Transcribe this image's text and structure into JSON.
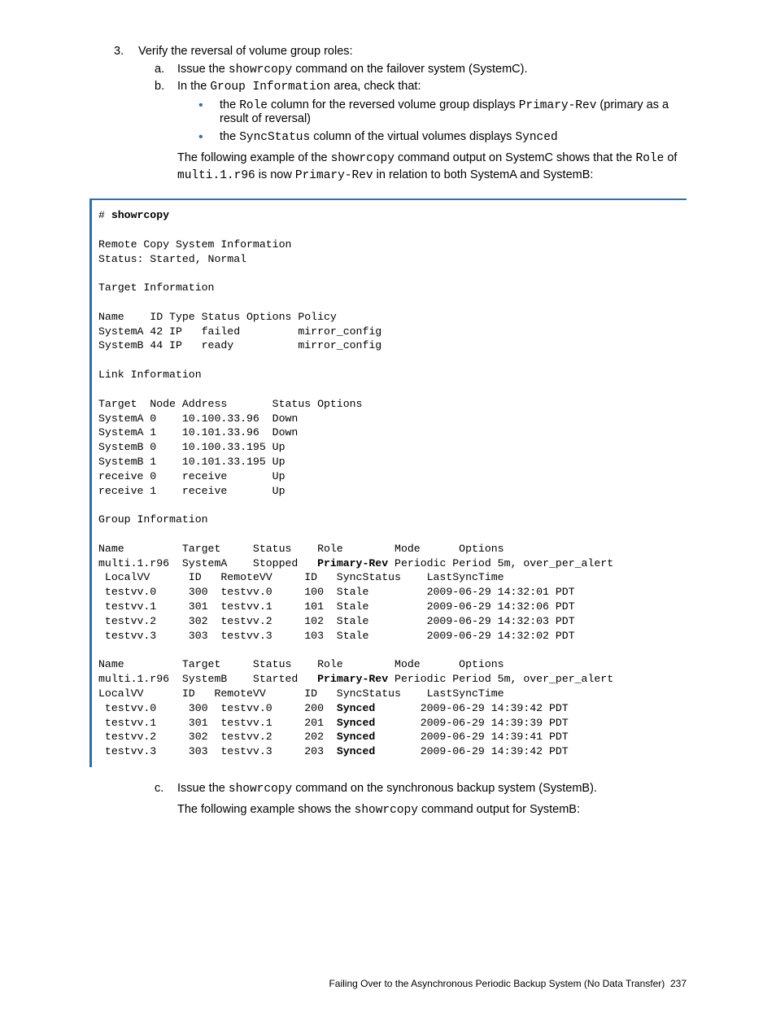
{
  "colors": {
    "bullet": "#2a6ebb",
    "code_border": "#2a6ebb",
    "text": "#000000"
  },
  "step3": {
    "number": "3.",
    "title": "Verify the reversal of volume group roles:",
    "a": {
      "label": "a.",
      "pre": "Issue the ",
      "cmd": "showrcopy",
      "post": " command on the failover system (SystemC)."
    },
    "b": {
      "label": "b.",
      "pre": "In the ",
      "cmd": "Group Information",
      "post": " area, check that:",
      "bullet1": {
        "t1": "the ",
        "c1": "Role",
        "t2": " column for the reversed volume group displays ",
        "c2": "Primary-Rev",
        "t3": " (primary as a result of reversal)"
      },
      "bullet2": {
        "t1": "the ",
        "c1": "SyncStatus",
        "t2": " column of the virtual volumes displays ",
        "c2": "Synced"
      },
      "para": {
        "t1": "The following example of the ",
        "c1": "showrcopy",
        "t2": " command output on SystemC shows that the ",
        "c2": "Role",
        "t3": " of ",
        "c3": "multi.1.r96",
        "t4": " is now ",
        "c4": "Primary-Rev",
        "t5": " in relation to both SystemA and SystemB:"
      }
    }
  },
  "code": {
    "prompt": "# ",
    "cmd": "showrcopy",
    "l1": "Remote Copy System Information",
    "l2": "Status: Started, Normal",
    "l3": "Target Information",
    "l4": "Name    ID Type Status Options Policy",
    "l5": "SystemA 42 IP   failed         mirror_config",
    "l6": "SystemB 44 IP   ready          mirror_config",
    "l7": "Link Information",
    "l8": "Target  Node Address       Status Options",
    "l9": "SystemA 0    10.100.33.96  Down",
    "l10": "SystemA 1    10.101.33.96  Down",
    "l11": "SystemB 0    10.100.33.195 Up",
    "l12": "SystemB 1    10.101.33.195 Up",
    "l13": "receive 0    receive       Up",
    "l14": "receive 1    receive       Up",
    "l15": "Group Information",
    "g1h": "Name         Target     Status    Role        Mode      Options",
    "g1a": "multi.1.r96  SystemA    Stopped   ",
    "g1role": "Primary-Rev",
    "g1b": " Periodic Period 5m, over_per_alert",
    "g1vh": " LocalVV      ID   RemoteVV     ID   SyncStatus    LastSyncTime",
    "g1v1": " testvv.0     300  testvv.0     100  Stale         2009-06-29 14:32:01 PDT",
    "g1v2": " testvv.1     301  testvv.1     101  Stale         2009-06-29 14:32:06 PDT",
    "g1v3": " testvv.2     302  testvv.2     102  Stale         2009-06-29 14:32:03 PDT",
    "g1v4": " testvv.3     303  testvv.3     103  Stale         2009-06-29 14:32:02 PDT",
    "g2h": "Name         Target     Status    Role        Mode      Options",
    "g2a": "multi.1.r96  SystemB    Started   ",
    "g2role": "Primary-Rev",
    "g2b": " Periodic Period 5m, over_per_alert",
    "g2vh": "LocalVV      ID   RemoteVV      ID   SyncStatus    LastSyncTime",
    "g2v1a": " testvv.0     300  testvv.0     200  ",
    "g2v1s": "Synced",
    "g2v1b": "       2009-06-29 14:39:42 PDT",
    "g2v2a": " testvv.1     301  testvv.1     201  ",
    "g2v2s": "Synced",
    "g2v2b": "       2009-06-29 14:39:39 PDT",
    "g2v3a": " testvv.2     302  testvv.2     202  ",
    "g2v3s": "Synced",
    "g2v3b": "       2009-06-29 14:39:41 PDT",
    "g2v4a": " testvv.3     303  testvv.3     203  ",
    "g2v4s": "Synced",
    "g2v4b": "       2009-06-29 14:39:42 PDT"
  },
  "c": {
    "label": "c.",
    "line1_pre": "Issue the ",
    "line1_cmd": "showrcopy",
    "line1_post": " command on the synchronous backup system (SystemB).",
    "line2_pre": "The following example shows the ",
    "line2_cmd": "showrcopy",
    "line2_post": " command output for SystemB:"
  },
  "footer": {
    "text": "Failing Over to the Asynchronous Periodic Backup System (No Data Transfer)",
    "page": "237"
  }
}
